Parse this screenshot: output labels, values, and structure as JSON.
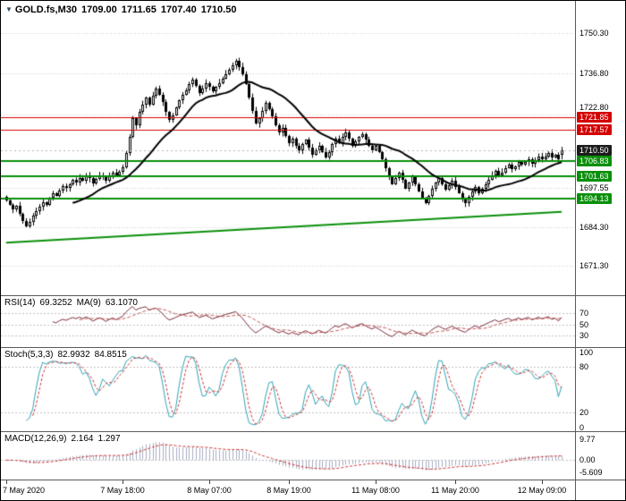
{
  "header": {
    "symbol_period": "GOLD.fs,M30",
    "open": "1709.00",
    "high": "1711.65",
    "low": "1707.40",
    "close": "1710.50"
  },
  "chart_colors": {
    "grid": "#c9c9c9",
    "background": "#ffffff",
    "frame": "#000000",
    "separator": "#5a5a5a"
  },
  "chart_data": {
    "type": "candlestick",
    "symbol": "GOLD.fs",
    "timeframe": "M30",
    "current": {
      "open": 1709.0,
      "high": 1711.65,
      "low": 1707.4,
      "close": 1710.5
    },
    "price_axis": {
      "min": 1662.0,
      "max": 1760.5,
      "ticks": [
        1750.3,
        1736.8,
        1722.8,
        1697.55,
        1684.3,
        1671.3
      ]
    },
    "x_labels": [
      {
        "bar": 0,
        "text": "7 May 2020"
      },
      {
        "bar": 35,
        "text": "7 May 18:00"
      },
      {
        "bar": 61,
        "text": "8 May 07:00"
      },
      {
        "bar": 85,
        "text": "8 May 19:00"
      },
      {
        "bar": 111,
        "text": "11 May 08:00"
      },
      {
        "bar": 135,
        "text": "11 May 20:00"
      },
      {
        "bar": 161,
        "text": "12 May 09:00"
      }
    ],
    "closes": [
      1693.5,
      1692.0,
      1690.3,
      1691.6,
      1688.8,
      1686.4,
      1684.6,
      1686.0,
      1688.3,
      1689.8,
      1691.2,
      1692.8,
      1692.0,
      1694.3,
      1695.8,
      1695.0,
      1696.8,
      1698.3,
      1697.6,
      1699.0,
      1700.3,
      1699.6,
      1701.0,
      1700.2,
      1701.8,
      1700.9,
      1699.3,
      1700.6,
      1702.1,
      1701.3,
      1700.0,
      1701.6,
      1702.8,
      1701.9,
      1703.3,
      1704.8,
      1709.5,
      1715.0,
      1721.5,
      1719.0,
      1723.5,
      1726.0,
      1728.5,
      1726.0,
      1729.0,
      1731.5,
      1729.5,
      1727.0,
      1723.5,
      1721.0,
      1722.5,
      1725.0,
      1727.5,
      1729.5,
      1731.0,
      1733.0,
      1734.5,
      1732.5,
      1730.0,
      1731.5,
      1733.5,
      1732.0,
      1730.5,
      1732.0,
      1733.5,
      1735.0,
      1736.5,
      1738.0,
      1739.5,
      1741.0,
      1739.0,
      1736.5,
      1733.0,
      1728.5,
      1724.0,
      1719.5,
      1721.5,
      1724.0,
      1726.5,
      1724.5,
      1722.0,
      1719.0,
      1716.5,
      1718.0,
      1715.5,
      1713.0,
      1714.5,
      1712.0,
      1710.5,
      1712.5,
      1714.0,
      1711.5,
      1709.0,
      1710.5,
      1712.0,
      1710.0,
      1708.0,
      1710.0,
      1712.5,
      1714.5,
      1713.0,
      1715.0,
      1716.5,
      1714.5,
      1712.0,
      1713.5,
      1715.0,
      1716.0,
      1714.0,
      1712.0,
      1710.5,
      1712.0,
      1710.0,
      1707.5,
      1704.5,
      1701.5,
      1699.0,
      1701.0,
      1703.0,
      1700.5,
      1697.5,
      1699.5,
      1701.5,
      1699.0,
      1696.5,
      1694.0,
      1692.5,
      1695.0,
      1697.5,
      1699.5,
      1701.0,
      1699.0,
      1697.0,
      1698.5,
      1700.0,
      1698.0,
      1696.0,
      1694.0,
      1692.5,
      1694.5,
      1696.5,
      1698.0,
      1696.0,
      1697.5,
      1699.0,
      1700.5,
      1702.0,
      1703.5,
      1702.0,
      1703.0,
      1704.5,
      1705.5,
      1704.0,
      1705.0,
      1706.5,
      1705.5,
      1706.5,
      1707.5,
      1706.0,
      1707.0,
      1708.5,
      1707.5,
      1708.5,
      1709.5,
      1708.0,
      1709.0,
      1707.4,
      1710.5
    ],
    "candle_colors": {
      "up_fill": "#ffffff",
      "down_fill": "#000000",
      "outline": "#000000"
    },
    "ma": {
      "period": 21,
      "color": "#000000"
    },
    "levels": [
      {
        "price": 1721.85,
        "color": "#d40000",
        "width": 1,
        "kind": "resistance"
      },
      {
        "price": 1717.57,
        "color": "#d40000",
        "width": 1,
        "kind": "resistance"
      },
      {
        "price": 1710.5,
        "color": "#1c1c1c",
        "width": 0,
        "kind": "current"
      },
      {
        "price": 1706.83,
        "color": "#0a8f0a",
        "width": 2,
        "kind": "support"
      },
      {
        "price": 1701.63,
        "color": "#0a8f0a",
        "width": 2,
        "kind": "support"
      },
      {
        "price": 1694.13,
        "color": "#0a8f0a",
        "width": 2,
        "kind": "support"
      }
    ],
    "trendline": {
      "from_bar": 0,
      "from_price": 1679.0,
      "to_bar": 167,
      "to_price": 1689.5,
      "color": "#0a8f0a",
      "width": 2
    },
    "indicators": [
      {
        "id": "rsi",
        "name": "RSI(14)",
        "value": "69.3252",
        "ma_name": "MA(9)",
        "ma_value": "63.1070",
        "period": 14,
        "ma_period": 9,
        "range": [
          15,
          95
        ],
        "levels": [
          70,
          50,
          30
        ],
        "axis": [
          {
            "v": 70,
            "label": "70"
          },
          {
            "v": 50,
            "label": "50"
          },
          {
            "v": 30,
            "label": "30"
          }
        ],
        "colors": {
          "main": "#7a2b3a",
          "signal": "#c05a5a",
          "level": "#c0c0c0"
        }
      },
      {
        "id": "stoch",
        "name": "Stoch(5,3,3)",
        "value": "82.9932",
        "signal_value": "84.8515",
        "k_period": 5,
        "slowing": 3,
        "d_period": 3,
        "range": [
          0,
          100
        ],
        "levels": [
          80,
          20
        ],
        "axis": [
          {
            "v": 100,
            "label": "100"
          },
          {
            "v": 80,
            "label": "80"
          },
          {
            "v": 20,
            "label": "20"
          },
          {
            "v": 0,
            "label": "0"
          }
        ],
        "colors": {
          "main": "#2fa3b5",
          "signal": "#cc3333",
          "level": "#c0c0c0"
        }
      },
      {
        "id": "macd",
        "name": "MACD(12,26,9)",
        "value": "2.164",
        "signal_value": "1.297",
        "fast": 12,
        "slow": 26,
        "signal": 9,
        "range": [
          -7.5,
          11.5
        ],
        "axis": [
          {
            "v": 9.77,
            "label": "9.77"
          },
          {
            "v": 0,
            "label": "0.00"
          },
          {
            "v": -5.609,
            "label": "-5.609"
          }
        ],
        "colors": {
          "hist": "#a9adc2",
          "signal": "#cc3333",
          "level": "#c0c0c0"
        }
      }
    ]
  }
}
